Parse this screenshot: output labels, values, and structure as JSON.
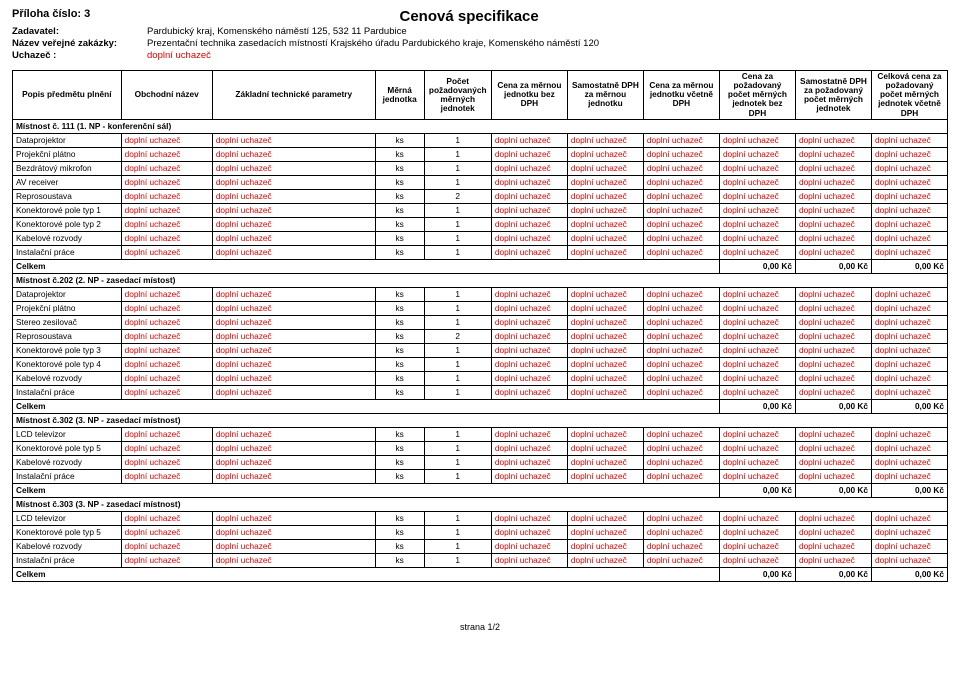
{
  "header": {
    "attachment_label": "Příloha číslo: 3",
    "title": "Cenová specifikace",
    "meta": [
      {
        "label": "Zadavatel:",
        "value": "Pardubický kraj, Komenského náměstí 125, 532 11 Pardubice"
      },
      {
        "label": "Název veřejné zakázky:",
        "value": "Prezentační technika zasedacích místností Krajského úřadu Pardubického kraje, Komenského náměstí 120"
      },
      {
        "label": "Uchazeč :",
        "value": "doplní uchazeč",
        "red": true
      }
    ]
  },
  "columns": [
    "Popis předmětu plnění",
    "Obchodní název",
    "Základní technické parametry",
    "Měrná jednotka",
    "Počet požadovaných měrných jednotek",
    "Cena za měrnou jednotku bez DPH",
    "Samostatně DPH za měrnou jednotku",
    "Cena za měrnou jednotku včetně DPH",
    "Cena za požadovaný počet měrných jednotek bez DPH",
    "Samostatně DPH za požadovaný počet měrných jednotek",
    "Celková cena za požadovaný počet měrných jednotek včetně DPH"
  ],
  "fill": "doplní uchazeč",
  "unit": "ks",
  "sections": [
    {
      "title": "Místnost č. 111 (1. NP - konferenční sál)",
      "rows": [
        {
          "name": "Dataprojektor",
          "qty": 1
        },
        {
          "name": "Projekční plátno",
          "qty": 1
        },
        {
          "name": "Bezdrátový mikrofon",
          "qty": 1
        },
        {
          "name": "AV receiver",
          "qty": 1
        },
        {
          "name": "Reprosoustava",
          "qty": 2
        },
        {
          "name": "Konektorové pole typ 1",
          "qty": 1
        },
        {
          "name": "Konektorové pole typ 2",
          "qty": 1
        },
        {
          "name": "Kabelové rozvody",
          "qty": 1
        },
        {
          "name": "Instalační práce",
          "qty": 1
        }
      ],
      "totals": [
        "0,00 Kč",
        "0,00 Kč",
        "0,00 Kč"
      ]
    },
    {
      "title": "Místnost č.202 (2. NP - zasedací místost)",
      "rows": [
        {
          "name": "Dataprojektor",
          "qty": 1
        },
        {
          "name": "Projekční plátno",
          "qty": 1
        },
        {
          "name": "Stereo zesilovač",
          "qty": 1
        },
        {
          "name": "Reprosoustava",
          "qty": 2
        },
        {
          "name": "Konektorové pole typ 3",
          "qty": 1
        },
        {
          "name": "Konektorové pole typ 4",
          "qty": 1
        },
        {
          "name": "Kabelové rozvody",
          "qty": 1
        },
        {
          "name": "Instalační práce",
          "qty": 1
        }
      ],
      "totals": [
        "0,00 Kč",
        "0,00 Kč",
        "0,00 Kč"
      ]
    },
    {
      "title": "Místnost č.302 (3. NP - zasedací místnost)",
      "rows": [
        {
          "name": "LCD televizor",
          "qty": 1
        },
        {
          "name": "Konektorové pole typ 5",
          "qty": 1
        },
        {
          "name": "Kabelové rozvody",
          "qty": 1
        },
        {
          "name": "Instalační práce",
          "qty": 1
        }
      ],
      "totals": [
        "0,00 Kč",
        "0,00 Kč",
        "0,00 Kč"
      ]
    },
    {
      "title": "Místnost č.303 (3. NP - zasedací místnost)",
      "rows": [
        {
          "name": "LCD televizor",
          "qty": 1
        },
        {
          "name": "Konektorové pole typ 5",
          "qty": 1
        },
        {
          "name": "Kabelové rozvody",
          "qty": 1
        },
        {
          "name": "Instalační práce",
          "qty": 1
        }
      ],
      "totals": [
        "0,00 Kč",
        "0,00 Kč",
        "0,00 Kč"
      ]
    }
  ],
  "total_label": "Celkem",
  "footer": "strana 1/2"
}
